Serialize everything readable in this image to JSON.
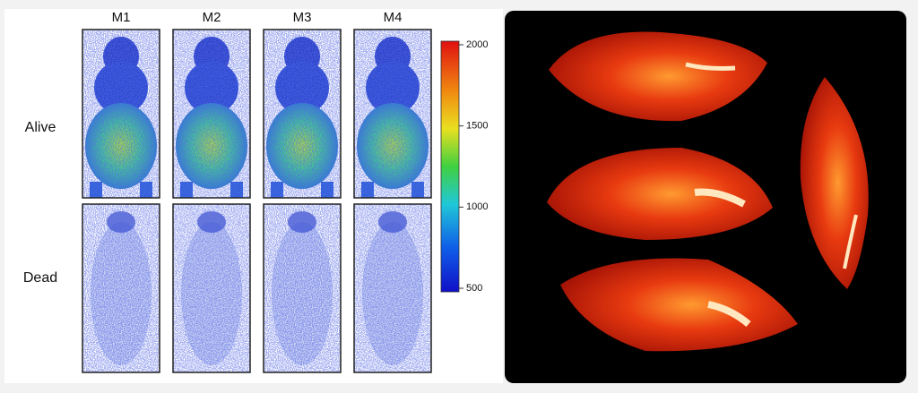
{
  "columns": [
    "M1",
    "M2",
    "M3",
    "M4"
  ],
  "rows": [
    "Alive",
    "Dead"
  ],
  "colorbar": {
    "ticks": [
      2000,
      1500,
      1000,
      500
    ]
  }
}
